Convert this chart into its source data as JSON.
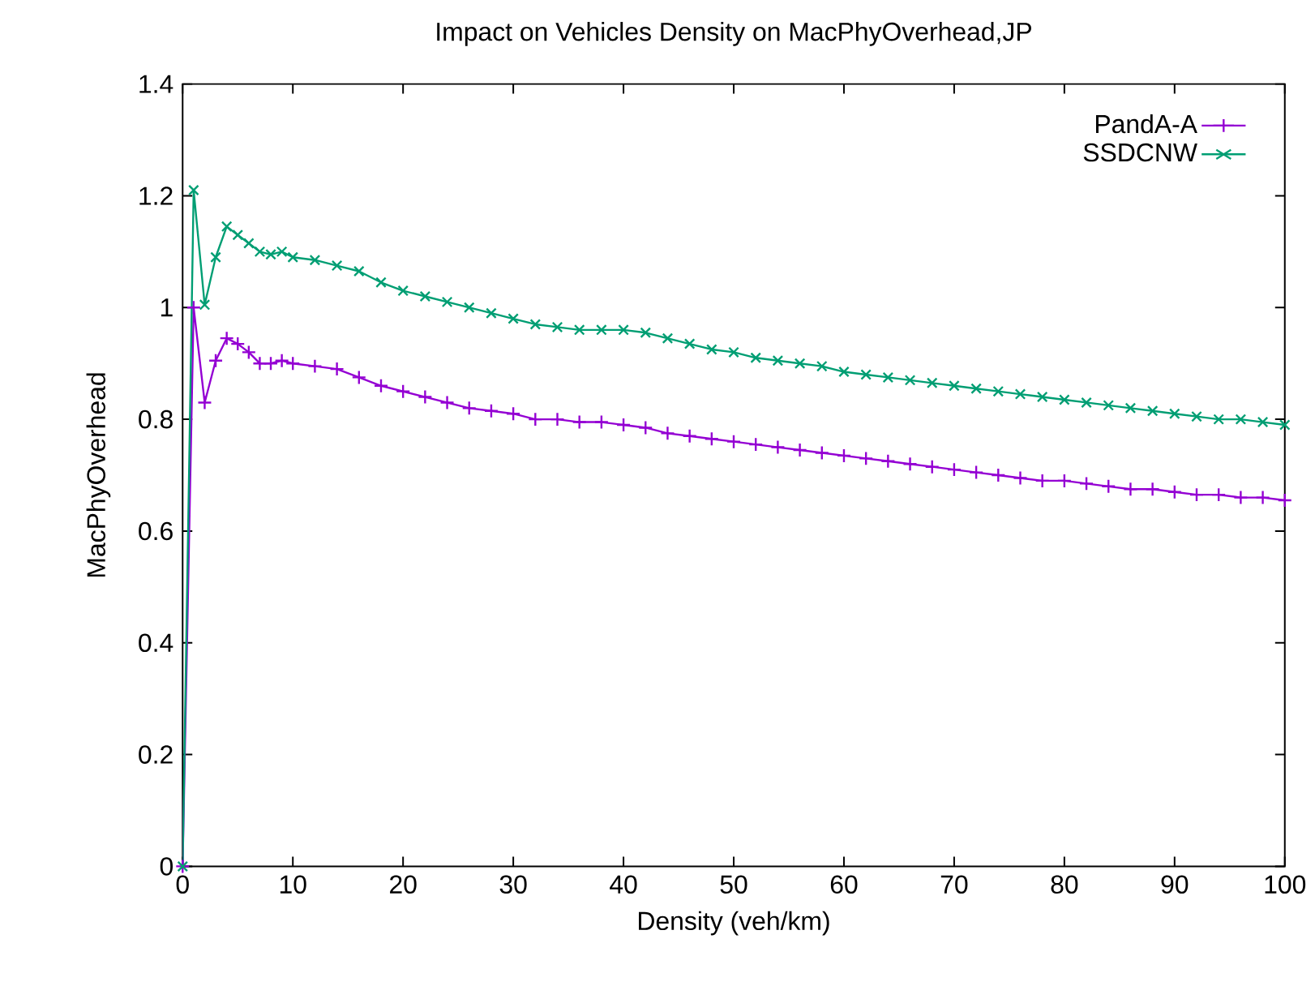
{
  "chart_data": {
    "type": "line",
    "title": "Impact on Vehicles Density on MacPhyOverhead,JP",
    "xlabel": "Density (veh/km)",
    "ylabel": "MacPhyOverhead",
    "xlim": [
      0,
      100
    ],
    "ylim": [
      0,
      1.4
    ],
    "xticks": [
      0,
      10,
      20,
      30,
      40,
      50,
      60,
      70,
      80,
      90,
      100
    ],
    "yticks": [
      0,
      0.2,
      0.4,
      0.6,
      0.8,
      1,
      1.2,
      1.4
    ],
    "grid": false,
    "legend": "top right",
    "series": [
      {
        "name": "PandA-A",
        "color": "#9400d3",
        "marker": "plus",
        "x": [
          0,
          1,
          2,
          3,
          4,
          5,
          6,
          7,
          8,
          9,
          10,
          12,
          14,
          16,
          18,
          20,
          22,
          24,
          26,
          28,
          30,
          32,
          34,
          36,
          38,
          40,
          42,
          44,
          46,
          48,
          50,
          52,
          54,
          56,
          58,
          60,
          62,
          64,
          66,
          68,
          70,
          72,
          74,
          76,
          78,
          80,
          82,
          84,
          86,
          88,
          90,
          92,
          94,
          96,
          98,
          100
        ],
        "values": [
          0,
          1.0,
          0.83,
          0.905,
          0.945,
          0.935,
          0.92,
          0.9,
          0.9,
          0.905,
          0.9,
          0.895,
          0.89,
          0.875,
          0.86,
          0.85,
          0.84,
          0.83,
          0.82,
          0.815,
          0.81,
          0.8,
          0.8,
          0.795,
          0.795,
          0.79,
          0.785,
          0.775,
          0.77,
          0.765,
          0.76,
          0.755,
          0.75,
          0.745,
          0.74,
          0.735,
          0.73,
          0.725,
          0.72,
          0.715,
          0.71,
          0.705,
          0.7,
          0.695,
          0.69,
          0.69,
          0.685,
          0.68,
          0.675,
          0.675,
          0.67,
          0.665,
          0.665,
          0.66,
          0.66,
          0.655
        ]
      },
      {
        "name": "SSDCNW",
        "color": "#009e73",
        "marker": "cross",
        "x": [
          0,
          1,
          2,
          3,
          4,
          5,
          6,
          7,
          8,
          9,
          10,
          12,
          14,
          16,
          18,
          20,
          22,
          24,
          26,
          28,
          30,
          32,
          34,
          36,
          38,
          40,
          42,
          44,
          46,
          48,
          50,
          52,
          54,
          56,
          58,
          60,
          62,
          64,
          66,
          68,
          70,
          72,
          74,
          76,
          78,
          80,
          82,
          84,
          86,
          88,
          90,
          92,
          94,
          96,
          98,
          100
        ],
        "values": [
          0,
          1.21,
          1.005,
          1.09,
          1.145,
          1.13,
          1.115,
          1.1,
          1.095,
          1.1,
          1.09,
          1.085,
          1.075,
          1.065,
          1.045,
          1.03,
          1.02,
          1.01,
          1.0,
          0.99,
          0.98,
          0.97,
          0.965,
          0.96,
          0.96,
          0.96,
          0.955,
          0.945,
          0.935,
          0.925,
          0.92,
          0.91,
          0.905,
          0.9,
          0.895,
          0.885,
          0.88,
          0.875,
          0.87,
          0.865,
          0.86,
          0.855,
          0.85,
          0.845,
          0.84,
          0.835,
          0.83,
          0.825,
          0.82,
          0.815,
          0.81,
          0.805,
          0.8,
          0.8,
          0.795,
          0.79
        ]
      }
    ]
  }
}
